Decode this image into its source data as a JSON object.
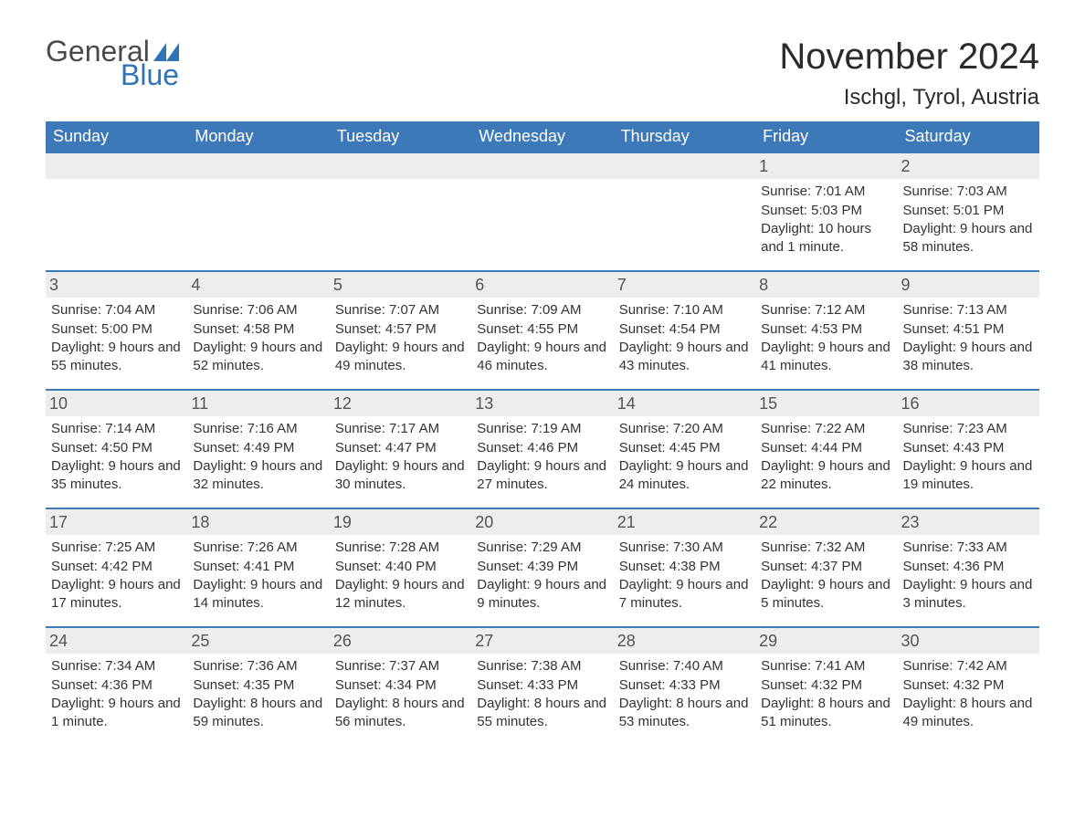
{
  "logo": {
    "text1": "General",
    "text2": "Blue",
    "flag_color": "#2f74b5"
  },
  "title": "November 2024",
  "location": "Ischgl, Tyrol, Austria",
  "colors": {
    "header_bg": "#3d79b8",
    "header_text": "#ffffff",
    "row_rule": "#3d79b8",
    "daynum_bg": "#ededed",
    "body_text": "#333333",
    "page_bg": "#ffffff"
  },
  "weekdays": [
    "Sunday",
    "Monday",
    "Tuesday",
    "Wednesday",
    "Thursday",
    "Friday",
    "Saturday"
  ],
  "weeks": [
    [
      null,
      null,
      null,
      null,
      null,
      {
        "n": "1",
        "sunrise": "Sunrise: 7:01 AM",
        "sunset": "Sunset: 5:03 PM",
        "daylight": "Daylight: 10 hours and 1 minute."
      },
      {
        "n": "2",
        "sunrise": "Sunrise: 7:03 AM",
        "sunset": "Sunset: 5:01 PM",
        "daylight": "Daylight: 9 hours and 58 minutes."
      }
    ],
    [
      {
        "n": "3",
        "sunrise": "Sunrise: 7:04 AM",
        "sunset": "Sunset: 5:00 PM",
        "daylight": "Daylight: 9 hours and 55 minutes."
      },
      {
        "n": "4",
        "sunrise": "Sunrise: 7:06 AM",
        "sunset": "Sunset: 4:58 PM",
        "daylight": "Daylight: 9 hours and 52 minutes."
      },
      {
        "n": "5",
        "sunrise": "Sunrise: 7:07 AM",
        "sunset": "Sunset: 4:57 PM",
        "daylight": "Daylight: 9 hours and 49 minutes."
      },
      {
        "n": "6",
        "sunrise": "Sunrise: 7:09 AM",
        "sunset": "Sunset: 4:55 PM",
        "daylight": "Daylight: 9 hours and 46 minutes."
      },
      {
        "n": "7",
        "sunrise": "Sunrise: 7:10 AM",
        "sunset": "Sunset: 4:54 PM",
        "daylight": "Daylight: 9 hours and 43 minutes."
      },
      {
        "n": "8",
        "sunrise": "Sunrise: 7:12 AM",
        "sunset": "Sunset: 4:53 PM",
        "daylight": "Daylight: 9 hours and 41 minutes."
      },
      {
        "n": "9",
        "sunrise": "Sunrise: 7:13 AM",
        "sunset": "Sunset: 4:51 PM",
        "daylight": "Daylight: 9 hours and 38 minutes."
      }
    ],
    [
      {
        "n": "10",
        "sunrise": "Sunrise: 7:14 AM",
        "sunset": "Sunset: 4:50 PM",
        "daylight": "Daylight: 9 hours and 35 minutes."
      },
      {
        "n": "11",
        "sunrise": "Sunrise: 7:16 AM",
        "sunset": "Sunset: 4:49 PM",
        "daylight": "Daylight: 9 hours and 32 minutes."
      },
      {
        "n": "12",
        "sunrise": "Sunrise: 7:17 AM",
        "sunset": "Sunset: 4:47 PM",
        "daylight": "Daylight: 9 hours and 30 minutes."
      },
      {
        "n": "13",
        "sunrise": "Sunrise: 7:19 AM",
        "sunset": "Sunset: 4:46 PM",
        "daylight": "Daylight: 9 hours and 27 minutes."
      },
      {
        "n": "14",
        "sunrise": "Sunrise: 7:20 AM",
        "sunset": "Sunset: 4:45 PM",
        "daylight": "Daylight: 9 hours and 24 minutes."
      },
      {
        "n": "15",
        "sunrise": "Sunrise: 7:22 AM",
        "sunset": "Sunset: 4:44 PM",
        "daylight": "Daylight: 9 hours and 22 minutes."
      },
      {
        "n": "16",
        "sunrise": "Sunrise: 7:23 AM",
        "sunset": "Sunset: 4:43 PM",
        "daylight": "Daylight: 9 hours and 19 minutes."
      }
    ],
    [
      {
        "n": "17",
        "sunrise": "Sunrise: 7:25 AM",
        "sunset": "Sunset: 4:42 PM",
        "daylight": "Daylight: 9 hours and 17 minutes."
      },
      {
        "n": "18",
        "sunrise": "Sunrise: 7:26 AM",
        "sunset": "Sunset: 4:41 PM",
        "daylight": "Daylight: 9 hours and 14 minutes."
      },
      {
        "n": "19",
        "sunrise": "Sunrise: 7:28 AM",
        "sunset": "Sunset: 4:40 PM",
        "daylight": "Daylight: 9 hours and 12 minutes."
      },
      {
        "n": "20",
        "sunrise": "Sunrise: 7:29 AM",
        "sunset": "Sunset: 4:39 PM",
        "daylight": "Daylight: 9 hours and 9 minutes."
      },
      {
        "n": "21",
        "sunrise": "Sunrise: 7:30 AM",
        "sunset": "Sunset: 4:38 PM",
        "daylight": "Daylight: 9 hours and 7 minutes."
      },
      {
        "n": "22",
        "sunrise": "Sunrise: 7:32 AM",
        "sunset": "Sunset: 4:37 PM",
        "daylight": "Daylight: 9 hours and 5 minutes."
      },
      {
        "n": "23",
        "sunrise": "Sunrise: 7:33 AM",
        "sunset": "Sunset: 4:36 PM",
        "daylight": "Daylight: 9 hours and 3 minutes."
      }
    ],
    [
      {
        "n": "24",
        "sunrise": "Sunrise: 7:34 AM",
        "sunset": "Sunset: 4:36 PM",
        "daylight": "Daylight: 9 hours and 1 minute."
      },
      {
        "n": "25",
        "sunrise": "Sunrise: 7:36 AM",
        "sunset": "Sunset: 4:35 PM",
        "daylight": "Daylight: 8 hours and 59 minutes."
      },
      {
        "n": "26",
        "sunrise": "Sunrise: 7:37 AM",
        "sunset": "Sunset: 4:34 PM",
        "daylight": "Daylight: 8 hours and 56 minutes."
      },
      {
        "n": "27",
        "sunrise": "Sunrise: 7:38 AM",
        "sunset": "Sunset: 4:33 PM",
        "daylight": "Daylight: 8 hours and 55 minutes."
      },
      {
        "n": "28",
        "sunrise": "Sunrise: 7:40 AM",
        "sunset": "Sunset: 4:33 PM",
        "daylight": "Daylight: 8 hours and 53 minutes."
      },
      {
        "n": "29",
        "sunrise": "Sunrise: 7:41 AM",
        "sunset": "Sunset: 4:32 PM",
        "daylight": "Daylight: 8 hours and 51 minutes."
      },
      {
        "n": "30",
        "sunrise": "Sunrise: 7:42 AM",
        "sunset": "Sunset: 4:32 PM",
        "daylight": "Daylight: 8 hours and 49 minutes."
      }
    ]
  ]
}
